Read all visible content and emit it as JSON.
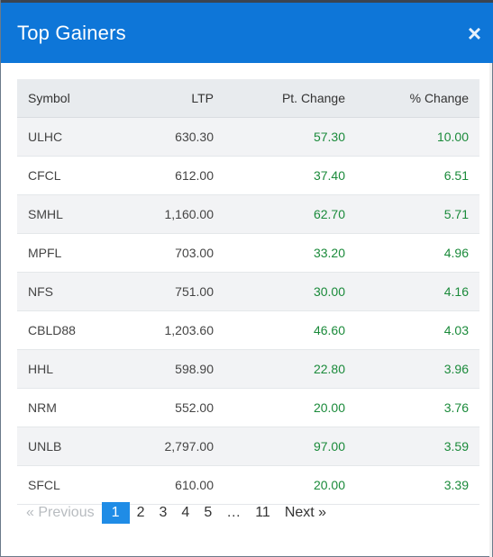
{
  "dialog": {
    "title": "Top Gainers",
    "close_glyph": "×"
  },
  "table": {
    "headers": {
      "symbol": "Symbol",
      "ltp": "LTP",
      "pt_change": "Pt. Change",
      "pct_change": "% Change"
    },
    "rows": [
      {
        "symbol": "ULHC",
        "ltp": "630.30",
        "pt_change": "57.30",
        "pct_change": "10.00"
      },
      {
        "symbol": "CFCL",
        "ltp": "612.00",
        "pt_change": "37.40",
        "pct_change": "6.51"
      },
      {
        "symbol": "SMHL",
        "ltp": "1,160.00",
        "pt_change": "62.70",
        "pct_change": "5.71"
      },
      {
        "symbol": "MPFL",
        "ltp": "703.00",
        "pt_change": "33.20",
        "pct_change": "4.96"
      },
      {
        "symbol": "NFS",
        "ltp": "751.00",
        "pt_change": "30.00",
        "pct_change": "4.16"
      },
      {
        "symbol": "CBLD88",
        "ltp": "1,203.60",
        "pt_change": "46.60",
        "pct_change": "4.03"
      },
      {
        "symbol": "HHL",
        "ltp": "598.90",
        "pt_change": "22.80",
        "pct_change": "3.96"
      },
      {
        "symbol": "NRM",
        "ltp": "552.00",
        "pt_change": "20.00",
        "pct_change": "3.76"
      },
      {
        "symbol": "UNLB",
        "ltp": "2,797.00",
        "pt_change": "97.00",
        "pct_change": "3.59"
      },
      {
        "symbol": "SFCL",
        "ltp": "610.00",
        "pt_change": "20.00",
        "pct_change": "3.39"
      }
    ]
  },
  "pagination": {
    "previous": "«  Previous",
    "pages": [
      "1",
      "2",
      "3",
      "4",
      "5",
      "…",
      "11"
    ],
    "current": "1",
    "next": "Next  »"
  },
  "colors": {
    "header_bg": "#0e76d8",
    "positive": "#1a8a3a",
    "active_page": "#1f8ce6"
  }
}
